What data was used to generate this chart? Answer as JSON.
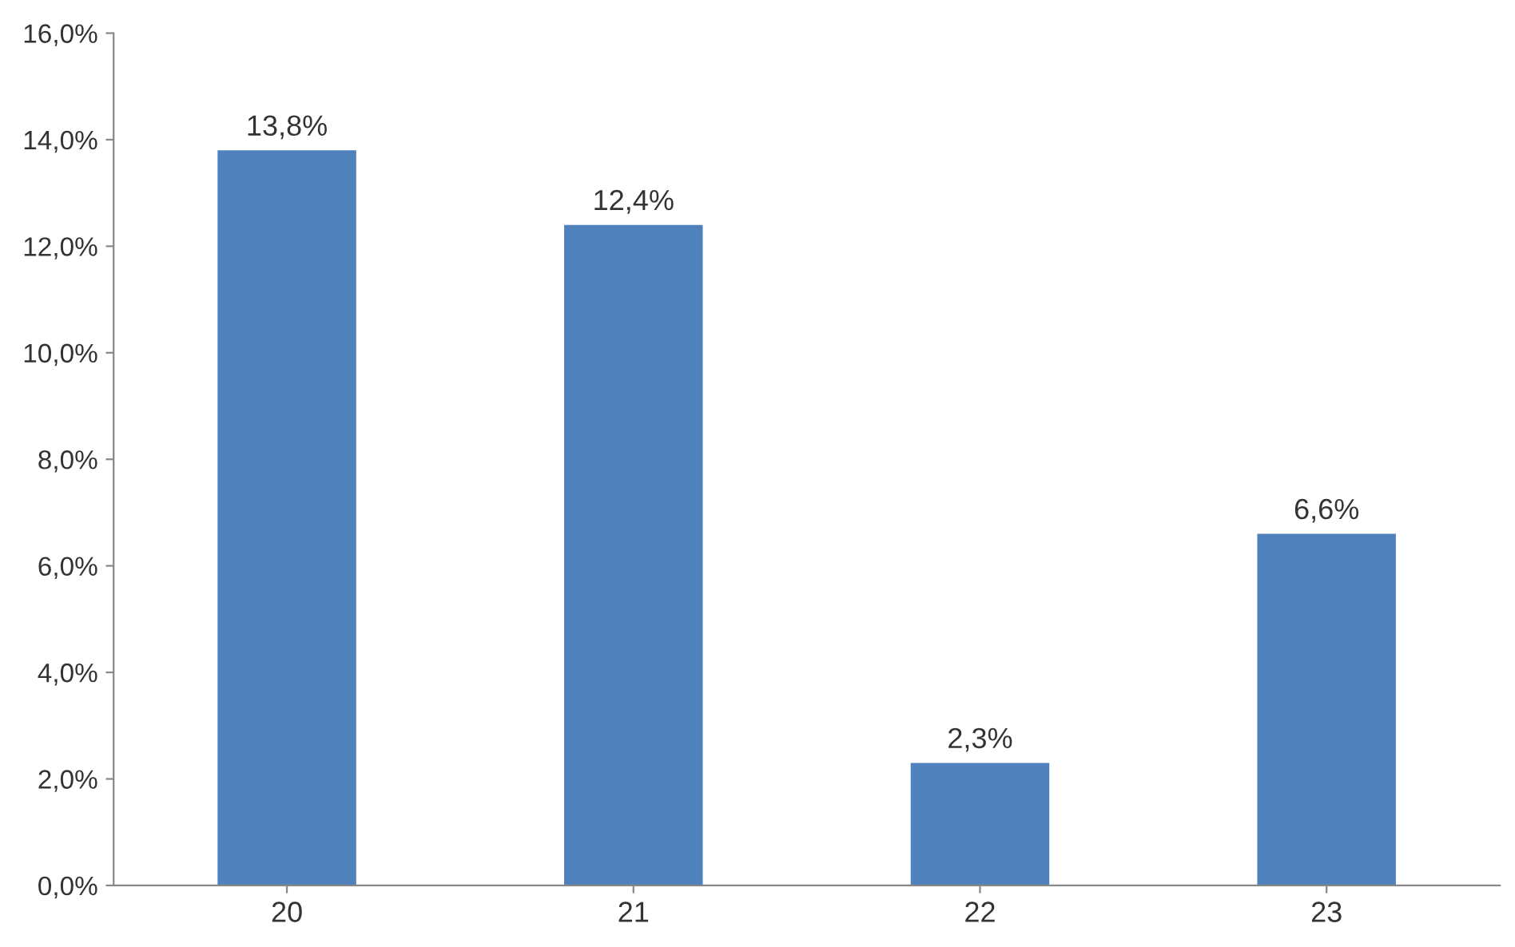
{
  "chart_data": {
    "type": "bar",
    "categories": [
      "20",
      "21",
      "22",
      "23"
    ],
    "values": [
      13.8,
      12.4,
      2.3,
      6.6
    ],
    "value_labels": [
      "13,8%",
      "12,4%",
      "2,3%",
      "6,6%"
    ],
    "color": "#4f81bd",
    "ylim": [
      0,
      16
    ],
    "yticks": [
      {
        "value": 0,
        "label": "0,0%"
      },
      {
        "value": 2,
        "label": "2,0%"
      },
      {
        "value": 4,
        "label": "4,0%"
      },
      {
        "value": 6,
        "label": "6,0%"
      },
      {
        "value": 8,
        "label": "8,0%"
      },
      {
        "value": 10,
        "label": "10,0%"
      },
      {
        "value": 12,
        "label": "12,0%"
      },
      {
        "value": 14,
        "label": "14,0%"
      },
      {
        "value": 16,
        "label": "16,0%"
      }
    ],
    "grid": false,
    "legend": false
  }
}
